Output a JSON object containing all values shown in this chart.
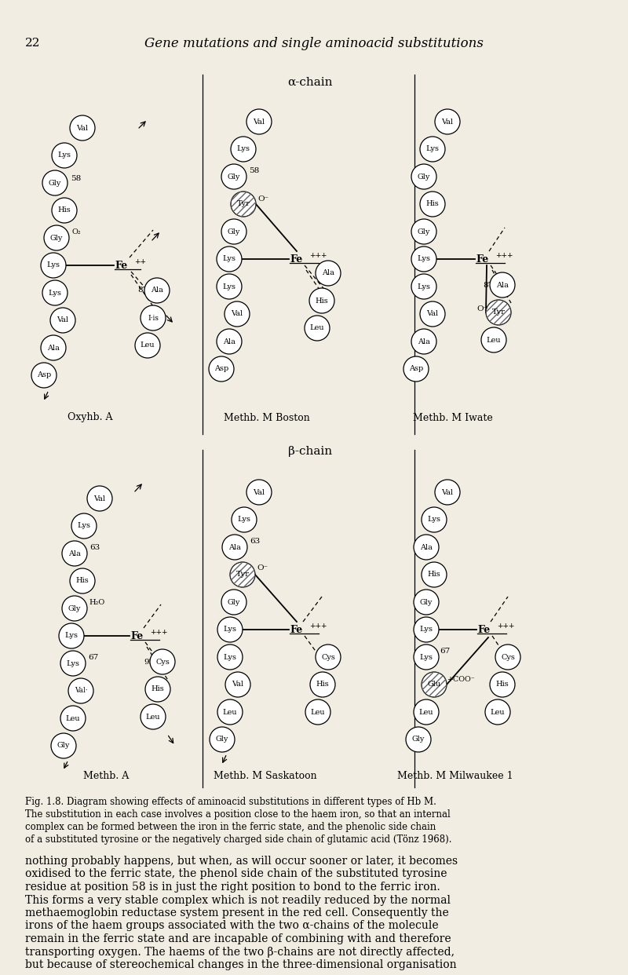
{
  "page_number": "22",
  "title": "Gene mutations and single aminoacid substitutions",
  "bg_color": "#f2ede2",
  "alpha_chain_label": "α-chain",
  "beta_chain_label": "β-chain",
  "fig_caption": "Fig. 1.8. Diagram showing effects of aminoacid substitutions in different types of Hb M.\nThe substitution in each case involves a position close to the haem iron, so that an internal\ncomplex can be formed between the iron in the ferric state, and the phenolic side chain\nof a substituted tyrosine or the negatively charged side chain of glutamic acid (Tönz 1968).",
  "body_text": "nothing probably happens, but when, as will occur sooner or later, it becomes\noxidised to the ferric state, the phenol side chain of the substituted tyrosine\nresidue at position 58 is in just the right position to bond to the ferric iron.\nThis forms a very stable complex which is not readily reduced by the normal\nmethaemoglobin reductase system present in the red cell. Consequently the\nirons of the haem groups associated with the two α-chains of the molecule\nremain in the ferric state and are incapable of combining with and therefore\ntransporting oxygen. The haems of the two β-chains are not directly affected,\nbut because of stereochemical changes in the three-dimensional organisation",
  "col1_alpha_label": "Oxyhb. A",
  "col2_alpha_label": "Methb. M Boston",
  "col3_alpha_label": "Methb. M Iwate",
  "col1_beta_label": "Methb. A",
  "col2_beta_label": "Methb. M Saskatoon",
  "col3_beta_label": "Methb. M Milwaukee 1"
}
